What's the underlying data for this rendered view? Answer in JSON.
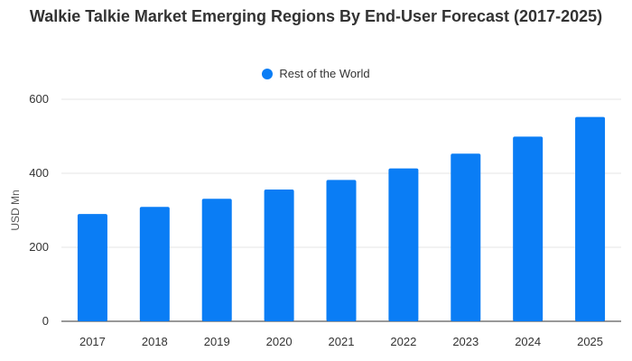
{
  "chart_data": {
    "type": "bar",
    "title": "Walkie Talkie Market Emerging Regions By End-User Forecast (2017-2025)",
    "xlabel": "",
    "ylabel": "USD Mn",
    "categories": [
      "2017",
      "2018",
      "2019",
      "2020",
      "2021",
      "2022",
      "2023",
      "2024",
      "2025"
    ],
    "series": [
      {
        "name": "Rest of the World",
        "color": "#0a7df5",
        "values": [
          290,
          309,
          331,
          356,
          382,
          413,
          453,
          499,
          552
        ]
      }
    ],
    "ylim": [
      0,
      600
    ],
    "yticks": [
      0,
      200,
      400,
      600
    ],
    "grid": true,
    "legend": "top-center"
  }
}
